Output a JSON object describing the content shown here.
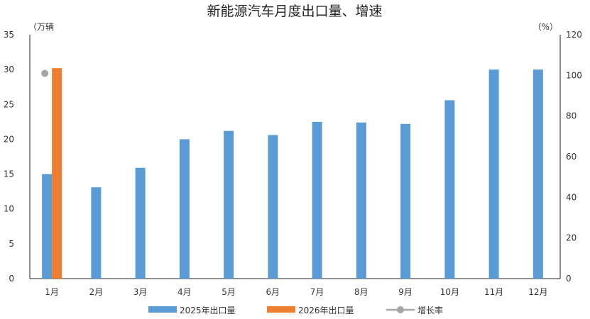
{
  "chart_data": {
    "type": "bar",
    "title": "新能源汽车月度出口量、增速",
    "ylabel_left": "（万辆",
    "ylabel_right": "（%）",
    "categories": [
      "1月",
      "2月",
      "3月",
      "4月",
      "5月",
      "6月",
      "7月",
      "8月",
      "9月",
      "10月",
      "11月",
      "12月"
    ],
    "ylim_left": [
      0,
      35
    ],
    "ylim_right": [
      0,
      120
    ],
    "yticks_left": [
      "0",
      "5",
      "10",
      "15",
      "20",
      "25",
      "30",
      "35"
    ],
    "yticks_right": [
      "0",
      "20",
      "40",
      "60",
      "80",
      "100",
      "120"
    ],
    "series": [
      {
        "name": "2025年出口量",
        "kind": "bar",
        "axis": "left",
        "color": "#5b9bd5",
        "values": [
          15.0,
          13.1,
          15.9,
          20.0,
          21.2,
          20.6,
          22.5,
          22.4,
          22.2,
          25.6,
          30.0,
          30.0
        ]
      },
      {
        "name": "2026年出口量",
        "kind": "bar",
        "axis": "left",
        "color": "#ed7d31",
        "values": [
          30.2,
          null,
          null,
          null,
          null,
          null,
          null,
          null,
          null,
          null,
          null,
          null
        ]
      },
      {
        "name": "增长率",
        "kind": "line",
        "axis": "right",
        "color": "#a5a5a5",
        "values": [
          101,
          null,
          null,
          null,
          null,
          null,
          null,
          null,
          null,
          null,
          null,
          null
        ]
      }
    ],
    "legend_position": "bottom",
    "grid": false
  }
}
